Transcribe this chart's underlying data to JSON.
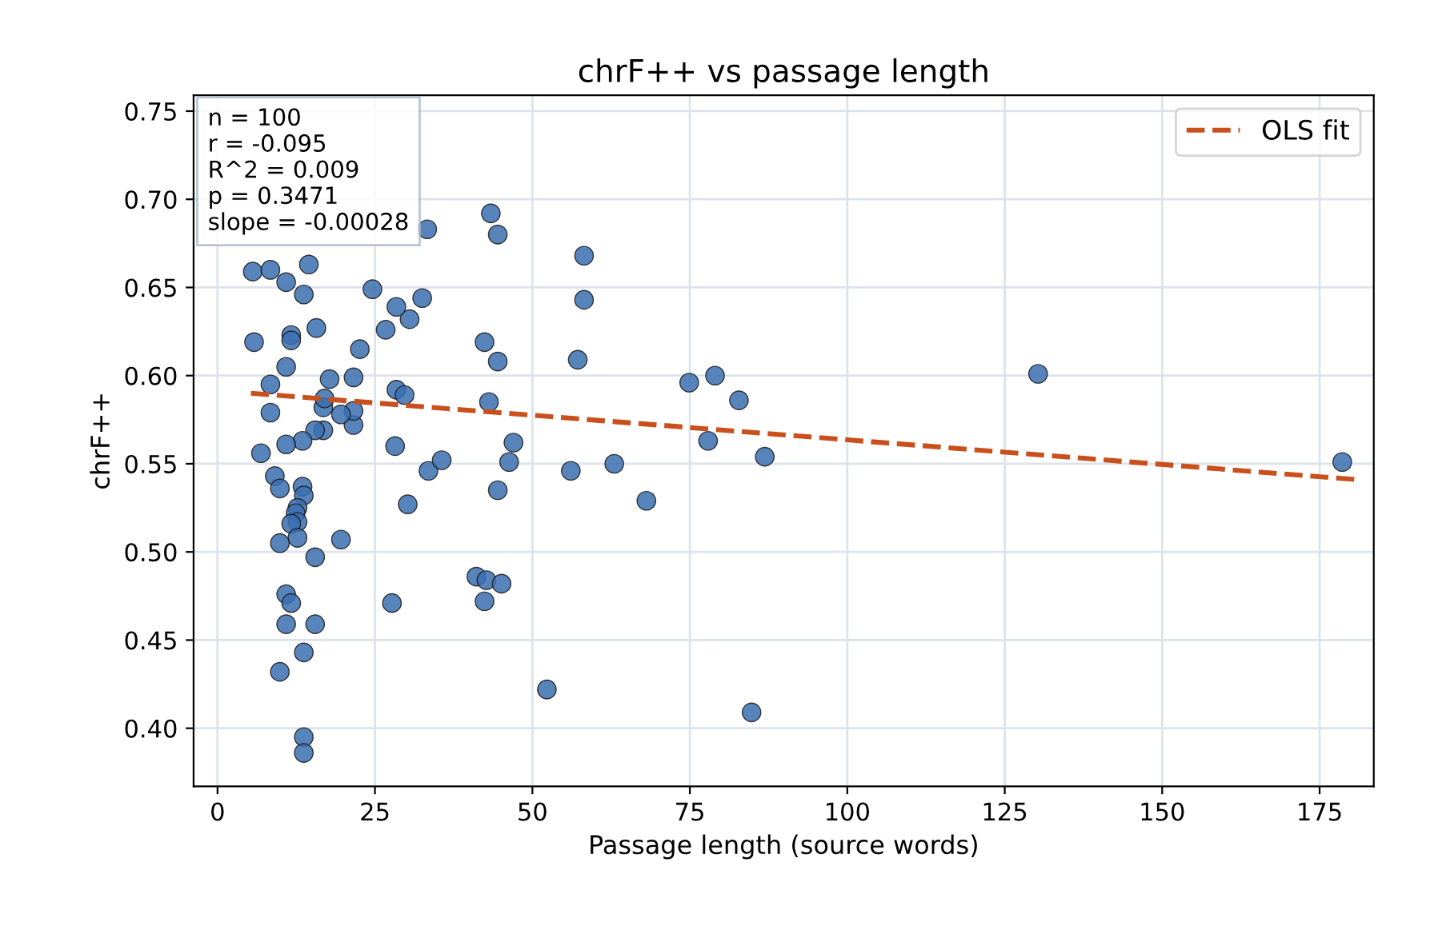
{
  "chart_data": {
    "type": "scatter",
    "title": "chrF++ vs passage length",
    "xlabel": "Passage length (source words)",
    "ylabel": "chrF++",
    "xlim": [
      -3.8,
      183.6
    ],
    "ylim": [
      0.367,
      0.759
    ],
    "xticks": [
      0,
      25,
      50,
      75,
      100,
      125,
      150,
      175
    ],
    "yticks": [
      {
        "value": 0.4,
        "label": "0.40"
      },
      0.45,
      {
        "value": 0.5,
        "label": "0.50"
      },
      0.55,
      {
        "value": 0.6,
        "label": "0.60"
      },
      0.65,
      {
        "value": 0.7,
        "label": "0.70"
      },
      0.75
    ],
    "grid": true,
    "legend": "top right",
    "annotations": [
      "n = 100\nr = -0.095\nR^2 = 0.009\np = 0.3471\nslope = -0.00028"
    ],
    "series": [
      {
        "color": "#3b6fb0",
        "marker": "circle",
        "x": [
          5.6,
          8.4,
          5.8,
          11.7,
          11.7,
          15.7,
          22.6,
          26.7,
          30.5,
          28.4,
          24.6,
          32.5,
          13.7,
          10.9,
          14.5,
          14.7,
          33.3,
          43.4,
          44.5,
          58.2,
          58.2,
          42.4,
          44.5,
          57.2,
          43.1,
          47.0,
          46.3,
          44.5,
          56.1,
          63.0,
          68.1,
          74.9,
          79.0,
          82.8,
          77.9,
          86.9,
          52.3,
          84.8,
          130.3,
          178.6,
          41.1,
          42.7,
          42.4,
          45.1,
          27.7,
          30.2,
          33.5,
          35.6,
          28.2,
          28.4,
          29.7,
          21.6,
          21.6,
          21.6,
          17.8,
          19.6,
          16.8,
          17.0,
          16.8,
          15.5,
          13.5,
          10.9,
          8.4,
          8.4,
          6.9,
          9.1,
          9.9,
          10.9,
          13.5,
          13.7,
          12.7,
          12.4,
          12.7,
          11.7,
          12.7,
          9.9,
          15.5,
          19.6,
          10.9,
          11.7,
          10.9,
          15.5,
          13.7,
          9.9,
          13.7,
          13.7
        ],
        "values": [
          0.659,
          0.66,
          0.619,
          0.623,
          0.62,
          0.627,
          0.615,
          0.626,
          0.632,
          0.639,
          0.649,
          0.644,
          0.646,
          0.653,
          0.663,
          null,
          0.683,
          0.692,
          0.68,
          0.668,
          0.643,
          0.619,
          0.608,
          0.609,
          0.585,
          0.562,
          0.551,
          0.535,
          0.546,
          0.55,
          0.529,
          0.596,
          0.6,
          0.586,
          0.563,
          0.554,
          0.422,
          0.409,
          0.601,
          0.551,
          0.486,
          0.484,
          0.472,
          0.482,
          0.471,
          0.527,
          0.546,
          0.552,
          0.56,
          0.592,
          0.589,
          0.572,
          0.58,
          0.599,
          0.598,
          0.578,
          0.582,
          0.587,
          0.569,
          0.569,
          0.563,
          0.561,
          0.579,
          0.595,
          0.556,
          0.543,
          0.536,
          0.605,
          0.537,
          0.532,
          0.525,
          0.522,
          0.517,
          0.516,
          0.508,
          0.505,
          0.497,
          0.507,
          0.476,
          0.471,
          0.459,
          0.459,
          0.443,
          0.432,
          0.395,
          0.386
        ]
      },
      {
        "type": "line",
        "name": "OLS fit",
        "color": "#c9501c",
        "line_style": "dashed",
        "x": [
          5.3,
          180.9
        ],
        "values": [
          0.59,
          0.541
        ]
      }
    ]
  }
}
